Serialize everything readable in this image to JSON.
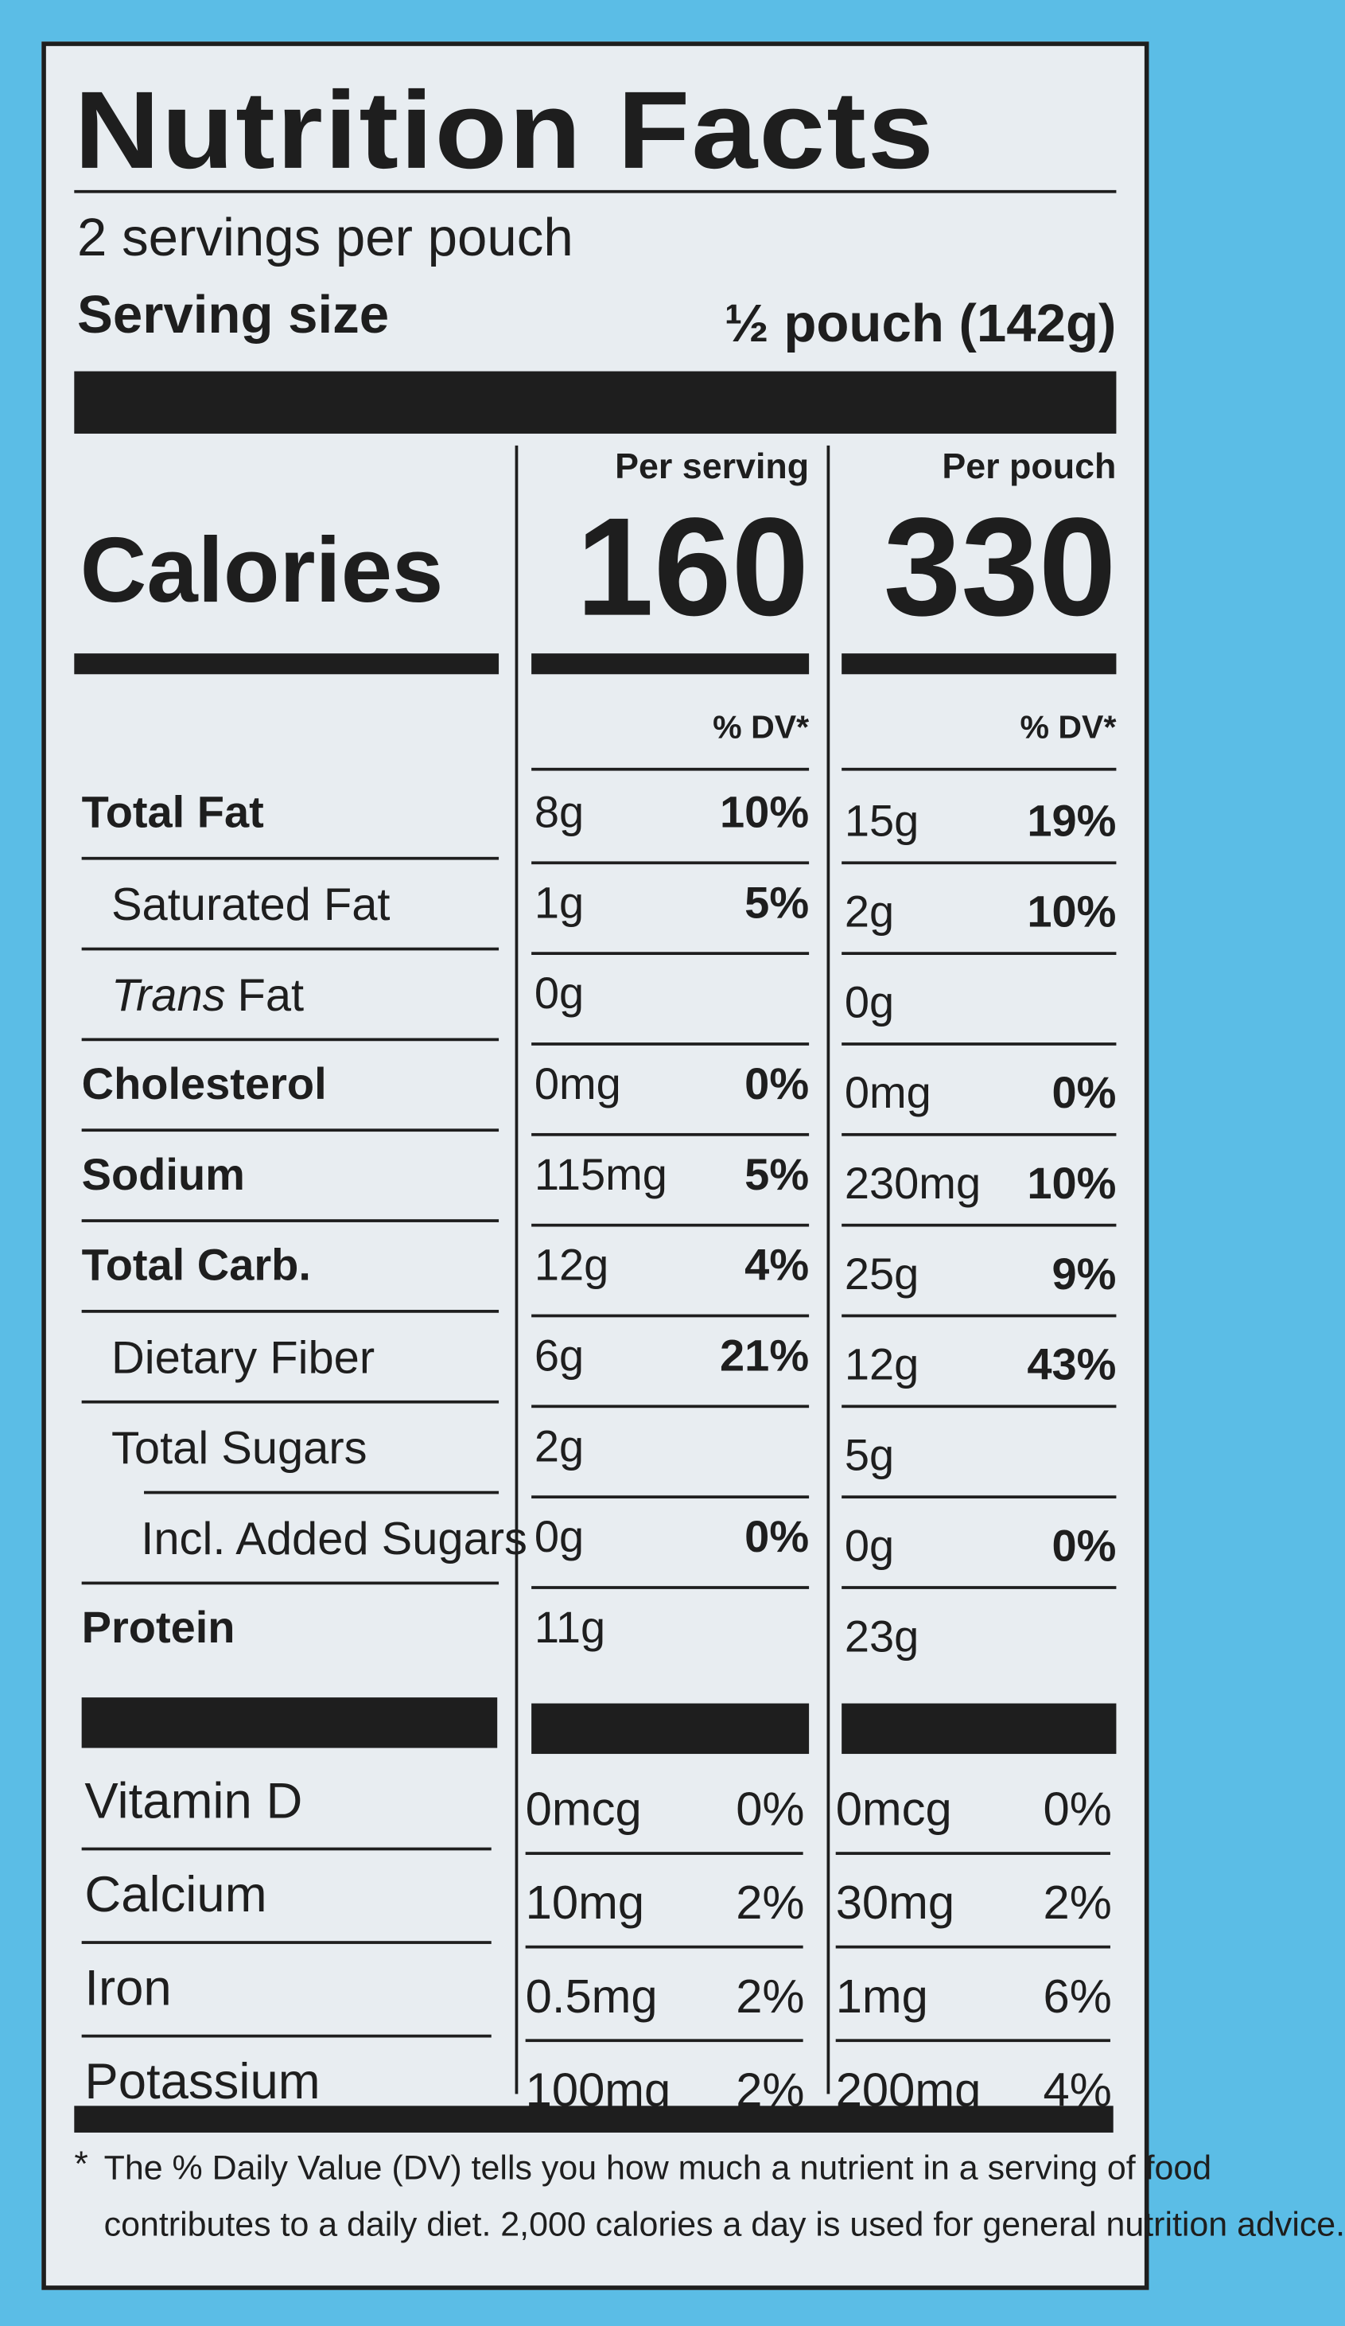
{
  "header": {
    "title": "Nutrition Facts",
    "servings": "2 servings per pouch",
    "serving_size_label": "Serving size",
    "serving_size_value": "½ pouch (142g)"
  },
  "calories": {
    "label": "Calories",
    "columns": [
      {
        "heading": "Per serving",
        "value": 160,
        "dv_heading": "% DV*"
      },
      {
        "heading": "Per pouch",
        "value": 330,
        "dv_heading": "% DV*"
      }
    ]
  },
  "nutrients": [
    {
      "name": "Total Fat",
      "bold": true,
      "indent": 0,
      "per_serving": {
        "amount": "8g",
        "dv": "10%"
      },
      "per_pouch": {
        "amount": "15g",
        "dv": "19%"
      }
    },
    {
      "name": "Saturated Fat",
      "bold": false,
      "indent": 1,
      "per_serving": {
        "amount": "1g",
        "dv": "5%"
      },
      "per_pouch": {
        "amount": "2g",
        "dv": "10%"
      }
    },
    {
      "name_italic": "Trans",
      "name": "Fat",
      "bold": false,
      "indent": 1,
      "per_serving": {
        "amount": "0g"
      },
      "per_pouch": {
        "amount": "0g"
      }
    },
    {
      "name": "Cholesterol",
      "bold": true,
      "indent": 0,
      "per_serving": {
        "amount": "0mg",
        "dv": "0%"
      },
      "per_pouch": {
        "amount": "0mg",
        "dv": "0%"
      }
    },
    {
      "name": "Sodium",
      "bold": true,
      "indent": 0,
      "per_serving": {
        "amount": "115mg",
        "dv": "5%"
      },
      "per_pouch": {
        "amount": "230mg",
        "dv": "10%"
      }
    },
    {
      "name": "Total Carb.",
      "bold": true,
      "indent": 0,
      "per_serving": {
        "amount": "12g",
        "dv": "4%"
      },
      "per_pouch": {
        "amount": "25g",
        "dv": "9%"
      }
    },
    {
      "name": "Dietary Fiber",
      "bold": false,
      "indent": 1,
      "per_serving": {
        "amount": "6g",
        "dv": "21%"
      },
      "per_pouch": {
        "amount": "12g",
        "dv": "43%"
      }
    },
    {
      "name": "Total Sugars",
      "bold": false,
      "indent": 1,
      "per_serving": {
        "amount": "2g"
      },
      "per_pouch": {
        "amount": "5g"
      }
    },
    {
      "name": "Incl. Added Sugars",
      "bold": false,
      "indent": 2,
      "per_serving": {
        "amount": "0g",
        "dv": "0%"
      },
      "per_pouch": {
        "amount": "0g",
        "dv": "0%"
      }
    },
    {
      "name": "Protein",
      "bold": true,
      "indent": 0,
      "per_serving": {
        "amount": "11g"
      },
      "per_pouch": {
        "amount": "23g"
      }
    }
  ],
  "vitamins": [
    {
      "name": "Vitamin D",
      "per_serving": {
        "amount": "0mcg",
        "dv": "0%"
      },
      "per_pouch": {
        "amount": "0mcg",
        "dv": "0%"
      }
    },
    {
      "name": "Calcium",
      "per_serving": {
        "amount": "10mg",
        "dv": "2%"
      },
      "per_pouch": {
        "amount": "30mg",
        "dv": "2%"
      }
    },
    {
      "name": "Iron",
      "per_serving": {
        "amount": "0.5mg",
        "dv": "2%"
      },
      "per_pouch": {
        "amount": "1mg",
        "dv": "6%"
      }
    },
    {
      "name": "Potassium",
      "per_serving": {
        "amount": "100mg",
        "dv": "2%"
      },
      "per_pouch": {
        "amount": "200mg",
        "dv": "4%"
      }
    }
  ],
  "footnote": {
    "marker": "*",
    "line1": "The % Daily Value (DV) tells you how much a nutrient in a serving of food",
    "line2": "contributes to a daily diet. 2,000 calories a day is used for general nutrition advice."
  }
}
